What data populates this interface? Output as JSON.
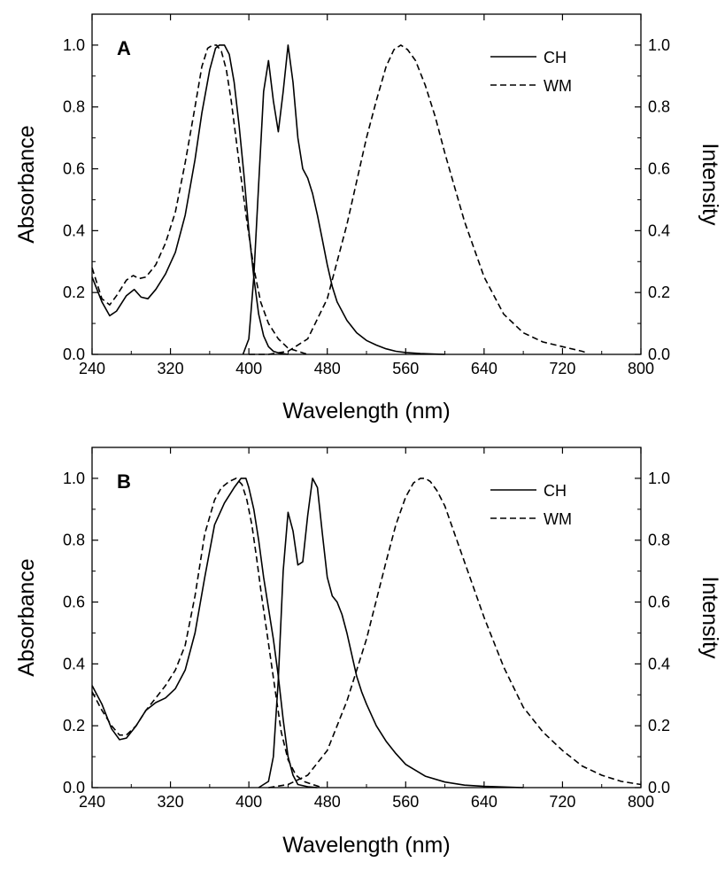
{
  "chart_data": [
    {
      "type": "line",
      "panel_label": "A",
      "xlabel": "Wavelength (nm)",
      "ylabel": "Absorbance",
      "y2label": "Intensity",
      "xlim": [
        240,
        800
      ],
      "ylim": [
        0,
        1.1
      ],
      "x_ticks": [
        240,
        320,
        400,
        480,
        560,
        640,
        720,
        800
      ],
      "y_ticks": [
        0.0,
        0.2,
        0.4,
        0.6,
        0.8,
        1.0
      ],
      "y_tick_labels": [
        "0.0",
        "0.2",
        "0.4",
        "0.6",
        "0.8",
        "1.0"
      ],
      "grid": false,
      "legend_position": "top-right",
      "legend": [
        {
          "label": "CH",
          "style": "solid"
        },
        {
          "label": "WM",
          "style": "dashed"
        }
      ],
      "series": [
        {
          "name": "CH",
          "kind": "absorbance",
          "style": "solid",
          "x": [
            240,
            250,
            258,
            265,
            275,
            283,
            290,
            297,
            305,
            315,
            325,
            335,
            345,
            352,
            360,
            366,
            370,
            375,
            380,
            385,
            390,
            395,
            400,
            405,
            410,
            415,
            420,
            425,
            430,
            440
          ],
          "y": [
            0.25,
            0.17,
            0.125,
            0.14,
            0.19,
            0.21,
            0.185,
            0.18,
            0.21,
            0.26,
            0.33,
            0.45,
            0.63,
            0.78,
            0.92,
            0.99,
            1.0,
            1.0,
            0.97,
            0.88,
            0.74,
            0.58,
            0.4,
            0.25,
            0.13,
            0.06,
            0.025,
            0.01,
            0.005,
            0.0
          ]
        },
        {
          "name": "WM",
          "kind": "absorbance",
          "style": "dashed",
          "x": [
            240,
            250,
            258,
            265,
            275,
            282,
            288,
            295,
            305,
            315,
            325,
            335,
            345,
            352,
            358,
            363,
            367,
            372,
            377,
            382,
            390,
            398,
            405,
            412,
            420,
            430,
            440,
            450,
            460
          ],
          "y": [
            0.28,
            0.18,
            0.16,
            0.19,
            0.24,
            0.255,
            0.245,
            0.25,
            0.29,
            0.36,
            0.46,
            0.62,
            0.8,
            0.93,
            0.99,
            1.0,
            1.0,
            0.98,
            0.92,
            0.82,
            0.62,
            0.43,
            0.28,
            0.17,
            0.1,
            0.05,
            0.02,
            0.01,
            0.0
          ]
        },
        {
          "name": "CH",
          "kind": "emission",
          "style": "solid",
          "x": [
            394,
            400,
            405,
            410,
            415,
            420,
            425,
            430,
            435,
            440,
            445,
            450,
            455,
            460,
            465,
            470,
            475,
            480,
            485,
            490,
            500,
            510,
            520,
            530,
            540,
            550,
            560,
            575,
            590,
            600
          ],
          "y": [
            0.0,
            0.05,
            0.25,
            0.55,
            0.85,
            0.95,
            0.82,
            0.72,
            0.85,
            1.0,
            0.88,
            0.7,
            0.6,
            0.57,
            0.52,
            0.45,
            0.37,
            0.29,
            0.22,
            0.17,
            0.11,
            0.07,
            0.045,
            0.03,
            0.018,
            0.01,
            0.006,
            0.003,
            0.001,
            0.0
          ]
        },
        {
          "name": "WM",
          "kind": "emission",
          "style": "dashed",
          "x": [
            400,
            420,
            440,
            460,
            480,
            500,
            520,
            530,
            540,
            548,
            555,
            562,
            570,
            580,
            590,
            600,
            620,
            640,
            660,
            680,
            700,
            720,
            740,
            745
          ],
          "y": [
            0.0,
            0.0,
            0.01,
            0.05,
            0.18,
            0.42,
            0.7,
            0.82,
            0.93,
            0.985,
            1.0,
            0.985,
            0.95,
            0.87,
            0.77,
            0.65,
            0.43,
            0.25,
            0.13,
            0.07,
            0.04,
            0.025,
            0.01,
            0.005
          ]
        }
      ]
    },
    {
      "type": "line",
      "panel_label": "B",
      "xlabel": "Wavelength (nm)",
      "ylabel": "Absorbance",
      "y2label": "Intensity",
      "xlim": [
        240,
        800
      ],
      "ylim": [
        0,
        1.1
      ],
      "x_ticks": [
        240,
        320,
        400,
        480,
        560,
        640,
        720,
        800
      ],
      "y_ticks": [
        0.0,
        0.2,
        0.4,
        0.6,
        0.8,
        1.0
      ],
      "y_tick_labels": [
        "0.0",
        "0.2",
        "0.4",
        "0.6",
        "0.8",
        "1.0"
      ],
      "grid": false,
      "legend_position": "top-right",
      "legend": [
        {
          "label": "CH",
          "style": "solid"
        },
        {
          "label": "WM",
          "style": "dashed"
        }
      ],
      "series": [
        {
          "name": "CH",
          "kind": "absorbance",
          "style": "solid",
          "x": [
            240,
            250,
            260,
            268,
            275,
            285,
            295,
            305,
            315,
            325,
            335,
            345,
            355,
            365,
            375,
            385,
            392,
            397,
            400,
            405,
            410,
            415,
            420,
            425,
            430,
            435,
            440,
            445,
            450,
            460,
            470
          ],
          "y": [
            0.33,
            0.27,
            0.19,
            0.155,
            0.16,
            0.2,
            0.25,
            0.275,
            0.29,
            0.32,
            0.38,
            0.5,
            0.68,
            0.85,
            0.92,
            0.97,
            1.0,
            1.0,
            0.97,
            0.9,
            0.8,
            0.68,
            0.58,
            0.48,
            0.36,
            0.22,
            0.1,
            0.04,
            0.01,
            0.003,
            0.0
          ]
        },
        {
          "name": "WM",
          "kind": "absorbance",
          "style": "dashed",
          "x": [
            240,
            250,
            260,
            268,
            275,
            285,
            295,
            305,
            315,
            325,
            335,
            345,
            355,
            365,
            372,
            380,
            387,
            393,
            398,
            403,
            408,
            413,
            418,
            423,
            428,
            433,
            440,
            448,
            456,
            465,
            475
          ],
          "y": [
            0.31,
            0.25,
            0.2,
            0.17,
            0.17,
            0.2,
            0.25,
            0.29,
            0.33,
            0.38,
            0.46,
            0.62,
            0.82,
            0.93,
            0.97,
            0.99,
            1.0,
            0.98,
            0.93,
            0.85,
            0.74,
            0.62,
            0.51,
            0.4,
            0.29,
            0.18,
            0.09,
            0.04,
            0.02,
            0.01,
            0.0
          ]
        },
        {
          "name": "CH",
          "kind": "emission",
          "style": "solid",
          "x": [
            410,
            420,
            425,
            430,
            435,
            440,
            445,
            450,
            455,
            460,
            465,
            470,
            475,
            480,
            485,
            490,
            495,
            500,
            505,
            510,
            515,
            520,
            530,
            540,
            550,
            560,
            580,
            600,
            620,
            640,
            660,
            680
          ],
          "y": [
            0.0,
            0.02,
            0.1,
            0.35,
            0.7,
            0.89,
            0.83,
            0.72,
            0.73,
            0.88,
            1.0,
            0.97,
            0.82,
            0.68,
            0.62,
            0.6,
            0.56,
            0.5,
            0.43,
            0.36,
            0.31,
            0.27,
            0.2,
            0.15,
            0.11,
            0.075,
            0.037,
            0.018,
            0.008,
            0.004,
            0.002,
            0.0
          ]
        },
        {
          "name": "WM",
          "kind": "emission",
          "style": "dashed",
          "x": [
            420,
            440,
            460,
            480,
            500,
            520,
            540,
            550,
            560,
            568,
            575,
            580,
            585,
            592,
            600,
            610,
            620,
            640,
            660,
            680,
            700,
            720,
            740,
            760,
            780,
            800
          ],
          "y": [
            0.0,
            0.01,
            0.04,
            0.12,
            0.28,
            0.48,
            0.73,
            0.85,
            0.94,
            0.985,
            1.0,
            1.0,
            0.99,
            0.96,
            0.91,
            0.82,
            0.73,
            0.55,
            0.39,
            0.26,
            0.18,
            0.12,
            0.07,
            0.04,
            0.02,
            0.01
          ]
        }
      ]
    }
  ]
}
